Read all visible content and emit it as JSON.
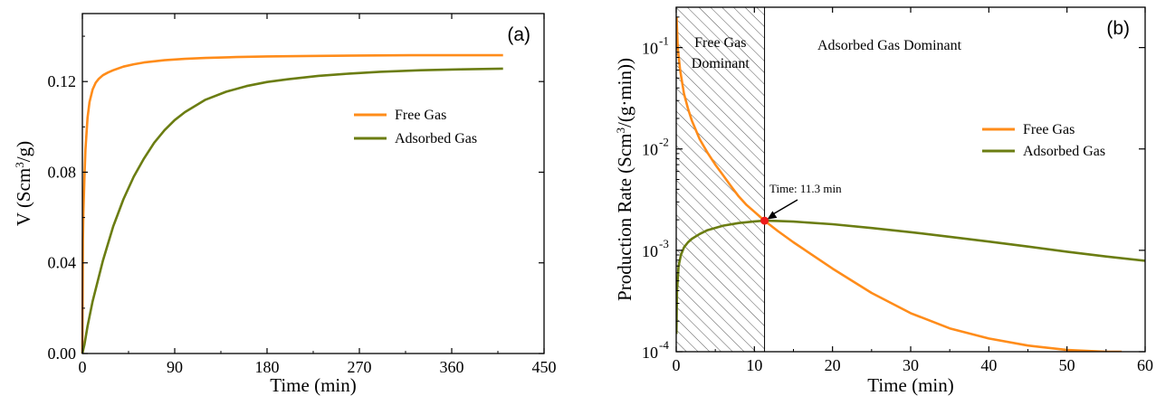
{
  "colors": {
    "free_gas": "#ff8c1a",
    "adsorbed_gas": "#6b7d12",
    "marker": "#ee1c1c",
    "frame": "#000000"
  },
  "chart_data": [
    {
      "type": "line",
      "panel_label": "(a)",
      "xlabel": "Time (min)",
      "ylabel": "V (Scm³/g)",
      "xlim": [
        0,
        450
      ],
      "ylim": [
        0,
        0.15
      ],
      "x_ticks": [
        0,
        90,
        180,
        270,
        360,
        450
      ],
      "x_tick_labels": [
        "0",
        "90",
        "180",
        "270",
        "360",
        "450"
      ],
      "y_ticks": [
        0,
        0.04,
        0.08,
        0.12
      ],
      "y_tick_labels": [
        "0.00",
        "0.04",
        "0.08",
        "0.12"
      ],
      "legend_position": "middle-right",
      "series": [
        {
          "name": "Free Gas",
          "color": "#ff8c1a",
          "x": [
            0,
            0.5,
            1,
            2,
            3,
            5,
            7,
            10,
            13,
            16,
            20,
            25,
            30,
            40,
            50,
            60,
            80,
            100,
            120,
            150,
            180,
            220,
            270,
            320,
            370,
            410
          ],
          "y": [
            0,
            0.05,
            0.062,
            0.078,
            0.09,
            0.104,
            0.111,
            0.1165,
            0.1195,
            0.1212,
            0.1228,
            0.124,
            0.125,
            0.1266,
            0.1276,
            0.1284,
            0.1294,
            0.13,
            0.1304,
            0.1308,
            0.1311,
            0.1313,
            0.1315,
            0.1316,
            0.1316,
            0.1316
          ]
        },
        {
          "name": "Adsorbed Gas",
          "color": "#6b7d12",
          "x": [
            0,
            2,
            5,
            10,
            15,
            20,
            30,
            40,
            50,
            60,
            70,
            80,
            90,
            100,
            120,
            140,
            160,
            180,
            200,
            230,
            260,
            290,
            330,
            370,
            410
          ],
          "y": [
            0,
            0.004,
            0.012,
            0.023,
            0.032,
            0.041,
            0.056,
            0.068,
            0.078,
            0.086,
            0.093,
            0.0985,
            0.103,
            0.1065,
            0.112,
            0.1155,
            0.118,
            0.1198,
            0.121,
            0.1225,
            0.1235,
            0.1243,
            0.125,
            0.1254,
            0.1257
          ]
        }
      ]
    },
    {
      "type": "line",
      "panel_label": "(b)",
      "xlabel": "Time (min)",
      "ylabel": "Production Rate (Scm³/(g·min))",
      "xlim": [
        0,
        60
      ],
      "ylim": [
        0.0001,
        0.25
      ],
      "y_scale": "log",
      "x_ticks": [
        0,
        10,
        20,
        30,
        40,
        50,
        60
      ],
      "x_tick_labels": [
        "0",
        "10",
        "20",
        "30",
        "40",
        "50",
        "60"
      ],
      "y_ticks": [
        0.0001,
        0.001,
        0.01,
        0.1
      ],
      "y_tick_labels": [
        {
          "base": "10",
          "exp": "-4"
        },
        {
          "base": "10",
          "exp": "-3"
        },
        {
          "base": "10",
          "exp": "-2"
        },
        {
          "base": "10",
          "exp": "-1"
        }
      ],
      "legend_position": "middle-right",
      "shaded_region": {
        "x_start": 0,
        "x_end": 11.3,
        "pattern": "diagonal-hatch"
      },
      "region_labels": [
        {
          "text_lines": [
            "Free Gas",
            "Dominant"
          ]
        },
        {
          "text_lines": [
            "Adsorbed Gas Dominant"
          ]
        }
      ],
      "annotation": {
        "text": "Time: 11.3 min",
        "x": 11.3,
        "y": 0.00196
      },
      "series": [
        {
          "name": "Free Gas",
          "color": "#ff8c1a",
          "x": [
            0.05,
            0.2,
            0.5,
            1,
            1.5,
            2,
            3,
            4,
            5,
            6,
            7,
            8,
            9,
            10,
            11.3,
            13,
            15,
            20,
            25,
            30,
            35,
            40,
            45,
            50,
            55,
            57
          ],
          "y": [
            0.2,
            0.1,
            0.06,
            0.035,
            0.025,
            0.019,
            0.0125,
            0.0092,
            0.007,
            0.0055,
            0.0043,
            0.0034,
            0.0028,
            0.0024,
            0.00196,
            0.00155,
            0.0012,
            0.00066,
            0.00038,
            0.00024,
            0.00017,
            0.000135,
            0.000115,
            0.000104,
            9.85e-05,
            9.75e-05
          ]
        },
        {
          "name": "Adsorbed Gas",
          "color": "#6b7d12",
          "x": [
            0.02,
            0.1,
            0.3,
            0.6,
            1,
            1.5,
            2,
            3,
            4,
            6,
            8,
            10,
            11.3,
            13,
            15,
            20,
            25,
            30,
            35,
            40,
            45,
            50,
            55,
            60
          ],
          "y": [
            0.00015,
            0.0004,
            0.0007,
            0.0009,
            0.00107,
            0.0012,
            0.0013,
            0.00145,
            0.00158,
            0.00175,
            0.00186,
            0.00193,
            0.00196,
            0.00195,
            0.00192,
            0.00181,
            0.00166,
            0.00151,
            0.00136,
            0.00122,
            0.00109,
            0.00097,
            0.00087,
            0.00079
          ]
        }
      ]
    }
  ]
}
